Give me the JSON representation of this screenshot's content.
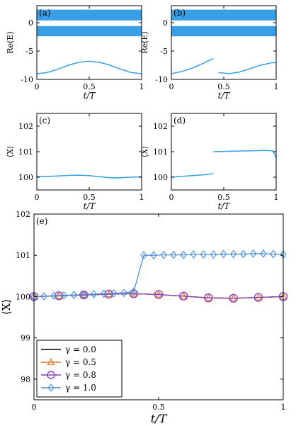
{
  "colors": {
    "line_blue": "#3aa0e6",
    "black": "#000000",
    "orange": "#e8782c",
    "purple": "#8b3fbf",
    "marker_blue": "#4a8fd8"
  },
  "chart_data": [
    {
      "panel": "(a)",
      "type": "line",
      "ylabel": "Re(E)",
      "xlabel": "t/T",
      "xlim": [
        0,
        1
      ],
      "ylim": [
        -10,
        3
      ],
      "xticks": [
        "0",
        "0.5",
        "1"
      ],
      "yticks": [
        "-10",
        "-5",
        "0"
      ],
      "bands": [
        {
          "name": "upper band",
          "y_low": 0.4,
          "y_high": 2.3
        },
        {
          "name": "lower band",
          "y_low": -2.4,
          "y_high": -0.6
        }
      ],
      "series": [
        {
          "x": [
            0,
            0.1,
            0.2,
            0.3,
            0.4,
            0.5,
            0.6,
            0.7,
            0.8,
            0.9,
            1.0
          ],
          "y": [
            -9.0,
            -8.8,
            -8.2,
            -7.5,
            -7.0,
            -6.8,
            -7.0,
            -7.5,
            -8.2,
            -8.8,
            -9.0
          ]
        }
      ]
    },
    {
      "panel": "(b)",
      "type": "line",
      "ylabel": "Re(E)",
      "xlabel": "t/T",
      "xlim": [
        0,
        1
      ],
      "ylim": [
        -10,
        3
      ],
      "xticks": [
        "0",
        "0.5",
        "1"
      ],
      "yticks": [
        "-10",
        "-5",
        "0"
      ],
      "bands": [
        {
          "name": "upper band",
          "y_low": 0.4,
          "y_high": 2.3
        },
        {
          "name": "lower band",
          "y_low": -2.4,
          "y_high": -0.6
        }
      ],
      "series": [
        {
          "x": [
            0,
            0.1,
            0.2,
            0.3,
            0.4
          ],
          "y": [
            -9.0,
            -8.6,
            -8.0,
            -7.2,
            -6.3
          ]
        },
        {
          "x": [
            0.45,
            0.55,
            0.65,
            0.75,
            0.85,
            0.95,
            1.0
          ],
          "y": [
            -8.8,
            -9.0,
            -8.7,
            -8.1,
            -7.5,
            -7.1,
            -7.0
          ]
        }
      ]
    },
    {
      "panel": "(c)",
      "type": "line",
      "ylabel": "⟨X⟩",
      "xlabel": "t/T",
      "xlim": [
        0,
        1
      ],
      "ylim": [
        99.5,
        102.5
      ],
      "xticks": [
        "0",
        "0.5",
        "1"
      ],
      "yticks": [
        "100",
        "101",
        "102"
      ],
      "series": [
        {
          "x": [
            0,
            0.1,
            0.2,
            0.3,
            0.4,
            0.5,
            0.6,
            0.7,
            0.8,
            0.9,
            1.0
          ],
          "y": [
            100.02,
            100.03,
            100.05,
            100.07,
            100.08,
            100.06,
            100.02,
            99.98,
            99.98,
            100.0,
            100.02
          ]
        }
      ]
    },
    {
      "panel": "(d)",
      "type": "line",
      "ylabel": "⟨X⟩",
      "xlabel": "t/T",
      "xlim": [
        0,
        1
      ],
      "ylim": [
        99.5,
        102.5
      ],
      "xticks": [
        "0",
        "0.5",
        "1"
      ],
      "yticks": [
        "100",
        "101",
        "102"
      ],
      "series": [
        {
          "x": [
            0,
            0.1,
            0.2,
            0.3,
            0.4
          ],
          "y": [
            100.0,
            100.03,
            100.06,
            100.09,
            100.14
          ]
        },
        {
          "x": [
            0.4,
            0.5,
            0.6,
            0.7,
            0.8,
            0.9,
            0.97,
            1.0
          ],
          "y": [
            101.0,
            101.01,
            101.02,
            101.03,
            101.04,
            101.05,
            101.03,
            100.75
          ]
        }
      ]
    },
    {
      "panel": "(e)",
      "type": "line",
      "ylabel": "⟨X⟩",
      "xlabel": "t/T",
      "xlim": [
        0,
        1
      ],
      "ylim": [
        97.5,
        102
      ],
      "xticks": [
        "0",
        "0.5",
        "1"
      ],
      "yticks": [
        "98",
        "99",
        "100",
        "101",
        "102"
      ],
      "legend_position": "bottom-left",
      "series": [
        {
          "name": "γ = 0.0",
          "color": "#000000",
          "marker": "none",
          "x": [
            0,
            0.1,
            0.2,
            0.3,
            0.4,
            0.5,
            0.6,
            0.7,
            0.8,
            0.9,
            1.0
          ],
          "y": [
            100.0,
            100.02,
            100.04,
            100.06,
            100.07,
            100.05,
            100.01,
            99.97,
            99.96,
            99.98,
            100.0
          ]
        },
        {
          "name": "γ = 0.5",
          "color": "#e8782c",
          "marker": "triangle",
          "x": [
            0,
            0.1,
            0.2,
            0.3,
            0.4,
            0.5,
            0.6,
            0.7,
            0.8,
            0.9,
            1.0
          ],
          "y": [
            100.0,
            100.02,
            100.04,
            100.06,
            100.07,
            100.05,
            100.01,
            99.97,
            99.96,
            99.98,
            100.0
          ]
        },
        {
          "name": "γ = 0.8",
          "color": "#8b3fbf",
          "marker": "circle",
          "x": [
            0,
            0.1,
            0.2,
            0.3,
            0.4,
            0.5,
            0.6,
            0.7,
            0.8,
            0.9,
            1.0
          ],
          "y": [
            100.0,
            100.02,
            100.04,
            100.06,
            100.07,
            100.05,
            100.01,
            99.97,
            99.96,
            99.98,
            100.0
          ]
        },
        {
          "name": "γ = 1.0",
          "color": "#4a8fd8",
          "marker": "diamond",
          "x": [
            0,
            0.04,
            0.08,
            0.12,
            0.16,
            0.2,
            0.24,
            0.28,
            0.32,
            0.36,
            0.4,
            0.44,
            0.48,
            0.52,
            0.56,
            0.6,
            0.64,
            0.68,
            0.72,
            0.76,
            0.8,
            0.84,
            0.88,
            0.92,
            0.96,
            1.0
          ],
          "y": [
            100.0,
            100.01,
            100.02,
            100.03,
            100.04,
            100.05,
            100.06,
            100.07,
            100.08,
            100.09,
            100.12,
            101.0,
            101.0,
            101.01,
            101.01,
            101.01,
            101.02,
            101.02,
            101.02,
            101.03,
            101.03,
            101.03,
            101.04,
            101.04,
            101.03,
            101.02
          ]
        }
      ]
    }
  ]
}
